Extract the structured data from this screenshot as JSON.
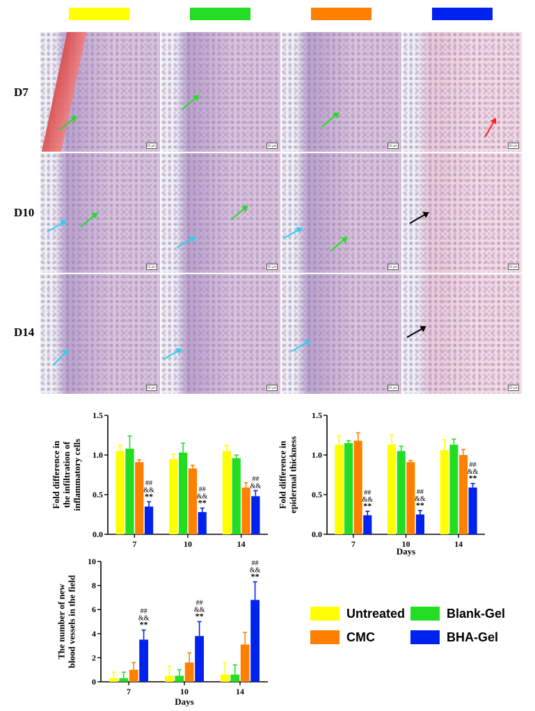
{
  "groups": [
    {
      "name": "Untreated",
      "color": "#ffff00"
    },
    {
      "name": "Blank-Gel",
      "color": "#22dd22"
    },
    {
      "name": "CMC",
      "color": "#ff8000"
    },
    {
      "name": "BHA-Gel",
      "color": "#0022ee"
    }
  ],
  "row_labels": [
    "D7",
    "D10",
    "D14"
  ],
  "scale_bar_label": "50 μm",
  "chart_data": [
    {
      "type": "bar",
      "ylabel": "Fold difference in the infiltration of inflammatory cells",
      "xlabel": "",
      "categories": [
        "7",
        "10",
        "14"
      ],
      "ylim": [
        0,
        1.5
      ],
      "yticks": [
        "0.0",
        "0.5",
        "1.0",
        "1.5"
      ],
      "series": [
        {
          "name": "Untreated",
          "values": [
            1.05,
            0.95,
            1.05
          ],
          "errors": [
            0.07,
            0.06,
            0.07
          ]
        },
        {
          "name": "Blank-Gel",
          "values": [
            1.08,
            1.03,
            0.96
          ],
          "errors": [
            0.16,
            0.12,
            0.04
          ]
        },
        {
          "name": "CMC",
          "values": [
            0.91,
            0.83,
            0.59
          ],
          "errors": [
            0.03,
            0.04,
            0.06
          ]
        },
        {
          "name": "BHA-Gel",
          "values": [
            0.35,
            0.28,
            0.48
          ],
          "errors": [
            0.06,
            0.05,
            0.07
          ]
        }
      ],
      "annotations": [
        {
          "category": "7",
          "series": "BHA-Gel",
          "marks": [
            "##",
            "&&",
            "**"
          ]
        },
        {
          "category": "10",
          "series": "BHA-Gel",
          "marks": [
            "##",
            "&&",
            "**"
          ]
        },
        {
          "category": "14",
          "series": "BHA-Gel",
          "marks": [
            "##",
            "&&"
          ]
        }
      ]
    },
    {
      "type": "bar",
      "ylabel": "Fold difference in epidermal thickness",
      "xlabel": "Days",
      "categories": [
        "7",
        "10",
        "14"
      ],
      "ylim": [
        0,
        1.5
      ],
      "yticks": [
        "0.0",
        "0.5",
        "1.0",
        "1.5"
      ],
      "series": [
        {
          "name": "Untreated",
          "values": [
            1.13,
            1.13,
            1.06
          ],
          "errors": [
            0.11,
            0.12,
            0.13
          ]
        },
        {
          "name": "Blank-Gel",
          "values": [
            1.15,
            1.05,
            1.13
          ],
          "errors": [
            0.03,
            0.06,
            0.07
          ]
        },
        {
          "name": "CMC",
          "values": [
            1.18,
            0.91,
            1.0
          ],
          "errors": [
            0.1,
            0.02,
            0.07
          ]
        },
        {
          "name": "BHA-Gel",
          "values": [
            0.24,
            0.25,
            0.59
          ],
          "errors": [
            0.05,
            0.05,
            0.05
          ]
        }
      ],
      "annotations": [
        {
          "category": "7",
          "series": "BHA-Gel",
          "marks": [
            "##",
            "&&",
            "**"
          ]
        },
        {
          "category": "10",
          "series": "BHA-Gel",
          "marks": [
            "##",
            "&&",
            "**"
          ]
        },
        {
          "category": "14",
          "series": "BHA-Gel",
          "marks": [
            "##",
            "&&",
            "**"
          ]
        }
      ]
    },
    {
      "type": "bar",
      "ylabel": "The number of new blood vessels in the field",
      "xlabel": "Days",
      "categories": [
        "7",
        "10",
        "14"
      ],
      "ylim": [
        0,
        10
      ],
      "yticks": [
        "0",
        "2",
        "4",
        "6",
        "8",
        "10"
      ],
      "series": [
        {
          "name": "Untreated",
          "values": [
            0.3,
            0.5,
            0.6
          ],
          "errors": [
            0.5,
            0.8,
            1.0
          ]
        },
        {
          "name": "Blank-Gel",
          "values": [
            0.3,
            0.5,
            0.6
          ],
          "errors": [
            0.5,
            0.5,
            0.8
          ]
        },
        {
          "name": "CMC",
          "values": [
            1.0,
            1.6,
            3.1
          ],
          "errors": [
            0.6,
            0.8,
            1.0
          ]
        },
        {
          "name": "BHA-Gel",
          "values": [
            3.5,
            3.8,
            6.8
          ],
          "errors": [
            0.8,
            1.2,
            1.5
          ]
        }
      ],
      "annotations": [
        {
          "category": "7",
          "series": "BHA-Gel",
          "marks": [
            "##",
            "&&",
            "**"
          ]
        },
        {
          "category": "10",
          "series": "BHA-Gel",
          "marks": [
            "##",
            "&&",
            "**"
          ]
        },
        {
          "category": "14",
          "series": "BHA-Gel",
          "marks": [
            "##",
            "&&",
            "**"
          ]
        }
      ]
    }
  ]
}
